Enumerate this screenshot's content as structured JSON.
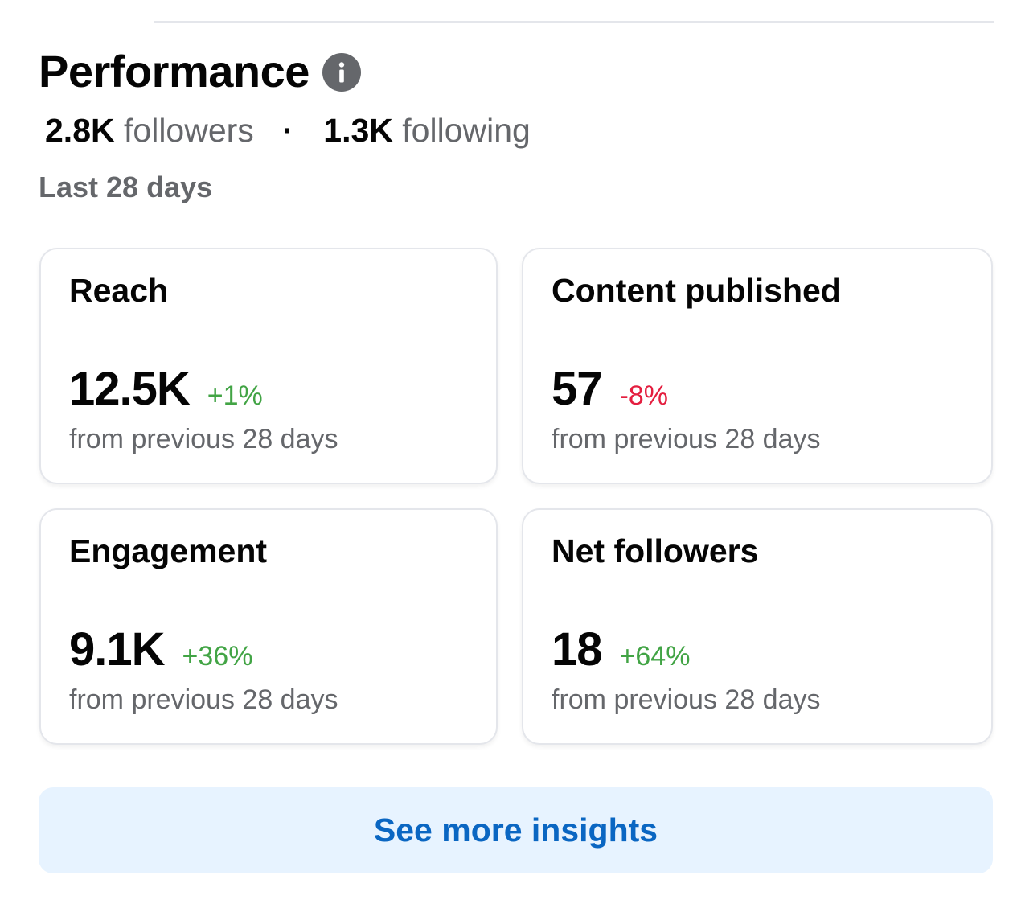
{
  "header": {
    "title": "Performance",
    "info_icon": "info-icon"
  },
  "stats": {
    "followers_count": "2.8K",
    "followers_label": "followers",
    "separator": "·",
    "following_count": "1.3K",
    "following_label": "following"
  },
  "period": "Last 28 days",
  "cards": [
    {
      "title": "Reach",
      "value": "12.5K",
      "change": "+1%",
      "trend": "up",
      "subtext": "from previous 28 days"
    },
    {
      "title": "Content published",
      "value": "57",
      "change": "-8%",
      "trend": "down",
      "subtext": "from previous 28 days"
    },
    {
      "title": "Engagement",
      "value": "9.1K",
      "change": "+36%",
      "trend": "up",
      "subtext": "from previous 28 days"
    },
    {
      "title": "Net followers",
      "value": "18",
      "change": "+64%",
      "trend": "up",
      "subtext": "from previous 28 days"
    }
  ],
  "insights_button": {
    "label": "See more insights"
  },
  "colors": {
    "positive": "#42a445",
    "negative": "#e41e3f",
    "link": "#0a66c2",
    "secondary_text": "#65676b",
    "button_bg": "#e7f3ff"
  }
}
